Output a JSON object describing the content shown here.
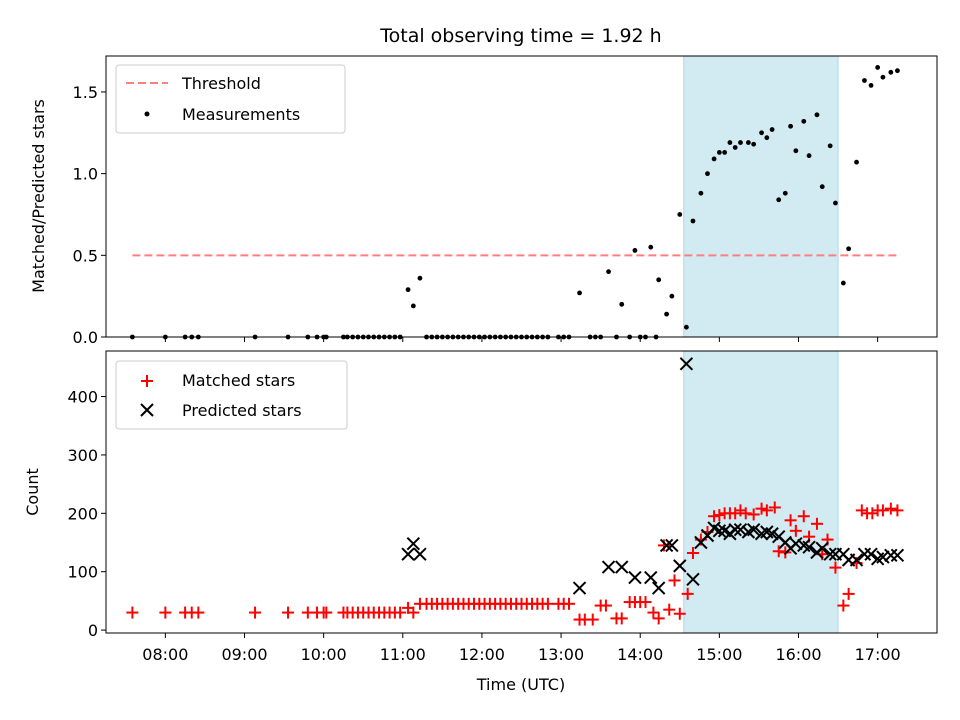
{
  "chart_data": [
    {
      "type": "scatter",
      "title": "Total observing time = 1.92 h",
      "xlabel": "",
      "ylabel": "Matched/Predicted stars",
      "ylim": [
        0,
        1.72
      ],
      "yticks": [
        0.0,
        0.5,
        1.0,
        1.5
      ],
      "yticklabels": [
        "0.0",
        "0.5",
        "1.0",
        "1.5"
      ],
      "xlim": [
        "07:15",
        "17:45"
      ],
      "legend_position": "upper-left",
      "highlight_span": {
        "x0": "14:33",
        "x1": "16:30",
        "color": "#add8e6"
      },
      "threshold": {
        "name": "Threshold",
        "y": 0.5,
        "x0": "07:35",
        "x1": "17:15",
        "color": "#ff7f7f"
      },
      "series": [
        {
          "name": "Measurements",
          "marker": "dot",
          "color": "#000000",
          "points": [
            [
              "07:35",
              0.0
            ],
            [
              "08:00",
              0.0
            ],
            [
              "08:15",
              0.0
            ],
            [
              "08:20",
              0.0
            ],
            [
              "08:25",
              0.0
            ],
            [
              "09:08",
              0.0
            ],
            [
              "09:33",
              0.0
            ],
            [
              "09:48",
              0.0
            ],
            [
              "09:55",
              0.0
            ],
            [
              "10:00",
              0.0
            ],
            [
              "10:02",
              0.0
            ],
            [
              "10:15",
              0.0
            ],
            [
              "10:18",
              0.0
            ],
            [
              "10:22",
              0.0
            ],
            [
              "10:26",
              0.0
            ],
            [
              "10:30",
              0.0
            ],
            [
              "10:34",
              0.0
            ],
            [
              "10:38",
              0.0
            ],
            [
              "10:42",
              0.0
            ],
            [
              "10:46",
              0.0
            ],
            [
              "10:50",
              0.0
            ],
            [
              "10:54",
              0.0
            ],
            [
              "10:58",
              0.0
            ],
            [
              "11:04",
              0.29
            ],
            [
              "11:08",
              0.19
            ],
            [
              "11:13",
              0.36
            ],
            [
              "11:18",
              0.0
            ],
            [
              "11:22",
              0.0
            ],
            [
              "11:26",
              0.0
            ],
            [
              "11:30",
              0.0
            ],
            [
              "11:34",
              0.0
            ],
            [
              "11:38",
              0.0
            ],
            [
              "11:42",
              0.0
            ],
            [
              "11:46",
              0.0
            ],
            [
              "11:50",
              0.0
            ],
            [
              "11:54",
              0.0
            ],
            [
              "11:58",
              0.0
            ],
            [
              "12:02",
              0.0
            ],
            [
              "12:06",
              0.0
            ],
            [
              "12:10",
              0.0
            ],
            [
              "12:14",
              0.0
            ],
            [
              "12:18",
              0.0
            ],
            [
              "12:22",
              0.0
            ],
            [
              "12:26",
              0.0
            ],
            [
              "12:30",
              0.0
            ],
            [
              "12:34",
              0.0
            ],
            [
              "12:38",
              0.0
            ],
            [
              "12:42",
              0.0
            ],
            [
              "12:46",
              0.0
            ],
            [
              "12:50",
              0.0
            ],
            [
              "12:58",
              0.0
            ],
            [
              "13:02",
              0.0
            ],
            [
              "13:06",
              0.0
            ],
            [
              "13:14",
              0.27
            ],
            [
              "13:22",
              0.0
            ],
            [
              "13:26",
              0.0
            ],
            [
              "13:30",
              0.0
            ],
            [
              "13:36",
              0.4
            ],
            [
              "13:42",
              0.0
            ],
            [
              "13:46",
              0.2
            ],
            [
              "13:52",
              0.0
            ],
            [
              "13:56",
              0.53
            ],
            [
              "14:00",
              0.0
            ],
            [
              "14:04",
              0.0
            ],
            [
              "14:08",
              0.55
            ],
            [
              "14:12",
              0.0
            ],
            [
              "14:14",
              0.35
            ],
            [
              "14:20",
              0.14
            ],
            [
              "14:24",
              0.25
            ],
            [
              "14:30",
              0.75
            ],
            [
              "14:35",
              0.06
            ],
            [
              "14:40",
              0.71
            ],
            [
              "14:46",
              0.88
            ],
            [
              "14:51",
              1.0
            ],
            [
              "14:56",
              1.09
            ],
            [
              "15:00",
              1.13
            ],
            [
              "15:04",
              1.13
            ],
            [
              "15:08",
              1.19
            ],
            [
              "15:12",
              1.16
            ],
            [
              "15:16",
              1.19
            ],
            [
              "15:22",
              1.19
            ],
            [
              "15:26",
              1.18
            ],
            [
              "15:32",
              1.25
            ],
            [
              "15:36",
              1.22
            ],
            [
              "15:40",
              1.27
            ],
            [
              "15:45",
              0.84
            ],
            [
              "15:50",
              0.88
            ],
            [
              "15:54",
              1.29
            ],
            [
              "15:58",
              1.14
            ],
            [
              "16:04",
              1.32
            ],
            [
              "16:08",
              1.11
            ],
            [
              "16:14",
              1.36
            ],
            [
              "16:18",
              0.92
            ],
            [
              "16:24",
              1.17
            ],
            [
              "16:28",
              0.82
            ],
            [
              "16:34",
              0.33
            ],
            [
              "16:38",
              0.54
            ],
            [
              "16:44",
              1.07
            ],
            [
              "16:50",
              1.57
            ],
            [
              "16:55",
              1.54
            ],
            [
              "17:00",
              1.65
            ],
            [
              "17:04",
              1.59
            ],
            [
              "17:10",
              1.62
            ],
            [
              "17:15",
              1.63
            ]
          ]
        }
      ]
    },
    {
      "type": "scatter",
      "title": "",
      "xlabel": "Time (UTC)",
      "ylabel": "Count",
      "ylim": [
        -5,
        478
      ],
      "yticks": [
        0,
        100,
        200,
        300,
        400
      ],
      "yticklabels": [
        "0",
        "100",
        "200",
        "300",
        "400"
      ],
      "xlim": [
        "07:15",
        "17:45"
      ],
      "xticks": [
        "08:00",
        "09:00",
        "10:00",
        "11:00",
        "12:00",
        "13:00",
        "14:00",
        "15:00",
        "16:00",
        "17:00"
      ],
      "legend_position": "upper-left",
      "highlight_span": {
        "x0": "14:33",
        "x1": "16:30",
        "color": "#add8e6"
      },
      "series": [
        {
          "name": "Matched stars",
          "marker": "plus",
          "color": "#ff0000",
          "points": [
            [
              "07:35",
              30
            ],
            [
              "08:00",
              30
            ],
            [
              "08:15",
              30
            ],
            [
              "08:20",
              30
            ],
            [
              "08:25",
              30
            ],
            [
              "09:08",
              30
            ],
            [
              "09:33",
              30
            ],
            [
              "09:48",
              30
            ],
            [
              "09:55",
              30
            ],
            [
              "10:00",
              30
            ],
            [
              "10:02",
              30
            ],
            [
              "10:15",
              30
            ],
            [
              "10:18",
              30
            ],
            [
              "10:22",
              30
            ],
            [
              "10:26",
              30
            ],
            [
              "10:30",
              30
            ],
            [
              "10:34",
              30
            ],
            [
              "10:38",
              30
            ],
            [
              "10:42",
              30
            ],
            [
              "10:46",
              30
            ],
            [
              "10:50",
              30
            ],
            [
              "10:54",
              30
            ],
            [
              "10:58",
              30
            ],
            [
              "11:04",
              38
            ],
            [
              "11:08",
              30
            ],
            [
              "11:13",
              45
            ],
            [
              "11:18",
              45
            ],
            [
              "11:22",
              45
            ],
            [
              "11:26",
              45
            ],
            [
              "11:30",
              45
            ],
            [
              "11:34",
              45
            ],
            [
              "11:38",
              45
            ],
            [
              "11:42",
              45
            ],
            [
              "11:46",
              45
            ],
            [
              "11:50",
              45
            ],
            [
              "11:54",
              45
            ],
            [
              "11:58",
              45
            ],
            [
              "12:02",
              45
            ],
            [
              "12:06",
              45
            ],
            [
              "12:10",
              45
            ],
            [
              "12:14",
              45
            ],
            [
              "12:18",
              45
            ],
            [
              "12:22",
              45
            ],
            [
              "12:26",
              45
            ],
            [
              "12:30",
              45
            ],
            [
              "12:34",
              45
            ],
            [
              "12:38",
              45
            ],
            [
              "12:42",
              45
            ],
            [
              "12:46",
              45
            ],
            [
              "12:50",
              45
            ],
            [
              "12:58",
              45
            ],
            [
              "13:02",
              45
            ],
            [
              "13:06",
              45
            ],
            [
              "13:14",
              18
            ],
            [
              "13:18",
              18
            ],
            [
              "13:24",
              18
            ],
            [
              "13:30",
              42
            ],
            [
              "13:34",
              42
            ],
            [
              "13:42",
              20
            ],
            [
              "13:46",
              20
            ],
            [
              "13:52",
              48
            ],
            [
              "13:56",
              48
            ],
            [
              "14:00",
              48
            ],
            [
              "14:04",
              48
            ],
            [
              "14:10",
              30
            ],
            [
              "14:14",
              20
            ],
            [
              "14:18",
              145
            ],
            [
              "14:22",
              35
            ],
            [
              "14:26",
              85
            ],
            [
              "14:30",
              28
            ],
            [
              "14:36",
              62
            ],
            [
              "14:40",
              132
            ],
            [
              "14:46",
              155
            ],
            [
              "14:51",
              168
            ],
            [
              "14:56",
              195
            ],
            [
              "15:00",
              197
            ],
            [
              "15:04",
              200
            ],
            [
              "15:08",
              200
            ],
            [
              "15:12",
              200
            ],
            [
              "15:16",
              205
            ],
            [
              "15:20",
              200
            ],
            [
              "15:26",
              198
            ],
            [
              "15:32",
              208
            ],
            [
              "15:36",
              205
            ],
            [
              "15:42",
              210
            ],
            [
              "15:45",
              135
            ],
            [
              "15:50",
              133
            ],
            [
              "15:54",
              188
            ],
            [
              "15:58",
              170
            ],
            [
              "16:04",
              195
            ],
            [
              "16:08",
              160
            ],
            [
              "16:14",
              182
            ],
            [
              "16:18",
              130
            ],
            [
              "16:22",
              155
            ],
            [
              "16:28",
              107
            ],
            [
              "16:34",
              42
            ],
            [
              "16:38",
              62
            ],
            [
              "16:44",
              115
            ],
            [
              "16:48",
              205
            ],
            [
              "16:52",
              200
            ],
            [
              "16:56",
              200
            ],
            [
              "17:00",
              205
            ],
            [
              "17:04",
              205
            ],
            [
              "17:10",
              208
            ],
            [
              "17:15",
              205
            ]
          ]
        },
        {
          "name": "Predicted stars",
          "marker": "x",
          "color": "#000000",
          "points": [
            [
              "11:04",
              130
            ],
            [
              "11:08",
              148
            ],
            [
              "11:13",
              130
            ],
            [
              "13:14",
              72
            ],
            [
              "13:36",
              108
            ],
            [
              "13:46",
              108
            ],
            [
              "13:56",
              90
            ],
            [
              "14:08",
              90
            ],
            [
              "14:14",
              72
            ],
            [
              "14:20",
              145
            ],
            [
              "14:24",
              145
            ],
            [
              "14:30",
              110
            ],
            [
              "14:35",
              456
            ],
            [
              "14:40",
              87
            ],
            [
              "14:46",
              150
            ],
            [
              "14:51",
              162
            ],
            [
              "14:56",
              175
            ],
            [
              "15:00",
              170
            ],
            [
              "15:04",
              170
            ],
            [
              "15:08",
              165
            ],
            [
              "15:12",
              172
            ],
            [
              "15:16",
              172
            ],
            [
              "15:22",
              168
            ],
            [
              "15:26",
              172
            ],
            [
              "15:32",
              165
            ],
            [
              "15:36",
              168
            ],
            [
              "15:40",
              165
            ],
            [
              "15:45",
              160
            ],
            [
              "15:50",
              150
            ],
            [
              "15:54",
              140
            ],
            [
              "15:58",
              148
            ],
            [
              "16:04",
              145
            ],
            [
              "16:08",
              142
            ],
            [
              "16:14",
              133
            ],
            [
              "16:18",
              140
            ],
            [
              "16:24",
              130
            ],
            [
              "16:28",
              130
            ],
            [
              "16:34",
              130
            ],
            [
              "16:38",
              120
            ],
            [
              "16:44",
              120
            ],
            [
              "16:50",
              130
            ],
            [
              "16:55",
              130
            ],
            [
              "17:00",
              122
            ],
            [
              "17:04",
              125
            ],
            [
              "17:10",
              128
            ],
            [
              "17:15",
              128
            ]
          ]
        }
      ]
    }
  ]
}
